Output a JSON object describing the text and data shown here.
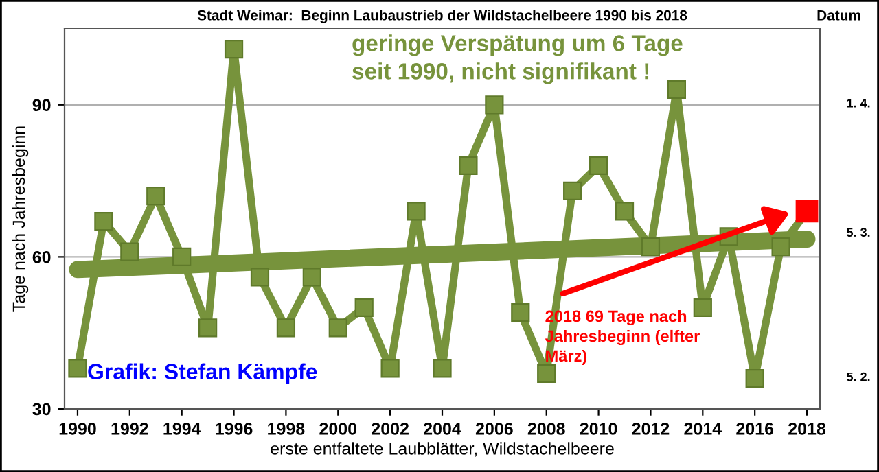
{
  "chart_data": {
    "type": "line",
    "title": "Stadt Weimar:  Beginn Laubaustrieb der Wildstachelbeere 1990 bis 2018",
    "xlabel": "erste entfaltete Laubblätter, Wildstachelbeere",
    "ylabel": "Tage nach Jahresbeginn",
    "y2label": "Datum",
    "x": [
      1990,
      1991,
      1992,
      1993,
      1994,
      1995,
      1996,
      1997,
      1998,
      1999,
      2000,
      2001,
      2002,
      2003,
      2004,
      2005,
      2006,
      2007,
      2008,
      2009,
      2010,
      2011,
      2012,
      2013,
      2014,
      2015,
      2016,
      2017,
      2018
    ],
    "series": [
      {
        "color": "#77933c",
        "marker": "square",
        "colors": [
          "#77933c",
          "#77933c",
          "#77933c",
          "#77933c",
          "#77933c",
          "#77933c",
          "#77933c",
          "#77933c",
          "#77933c",
          "#77933c",
          "#77933c",
          "#77933c",
          "#77933c",
          "#77933c",
          "#77933c",
          "#77933c",
          "#77933c",
          "#77933c",
          "#77933c",
          "#77933c",
          "#77933c",
          "#77933c",
          "#77933c",
          "#77933c",
          "#77933c",
          "#77933c",
          "#77933c",
          "#77933c",
          "#ff0000"
        ],
        "values": [
          38,
          67,
          61,
          72,
          60,
          46,
          101,
          56,
          46,
          56,
          46,
          50,
          38,
          69,
          38,
          78,
          90,
          49,
          37,
          73,
          78,
          69,
          62,
          93,
          50,
          64,
          36,
          62,
          69
        ]
      },
      {
        "color": "#77933c",
        "marker": "none",
        "x": [
          1990,
          2018
        ],
        "values": [
          57.5,
          63.5
        ]
      }
    ],
    "xlim": [
      1989.5,
      2018.5
    ],
    "xticks": [
      1990,
      1992,
      1994,
      1996,
      1998,
      2000,
      2002,
      2004,
      2006,
      2008,
      2010,
      2012,
      2014,
      2016,
      2018
    ],
    "ylim": [
      30,
      105
    ],
    "yticks": [
      30,
      60,
      90
    ],
    "grid": "y",
    "annotations": [
      "geringe Verspätung um 6 Tage\nseit 1990, nicht signifikant !",
      "Grafik: Stefan Kämpfe",
      "2018 69 Tage nach\nJahresbeginn (elfter\nMärz)",
      "1. 4.",
      "5. 3.",
      "5. 2."
    ]
  }
}
